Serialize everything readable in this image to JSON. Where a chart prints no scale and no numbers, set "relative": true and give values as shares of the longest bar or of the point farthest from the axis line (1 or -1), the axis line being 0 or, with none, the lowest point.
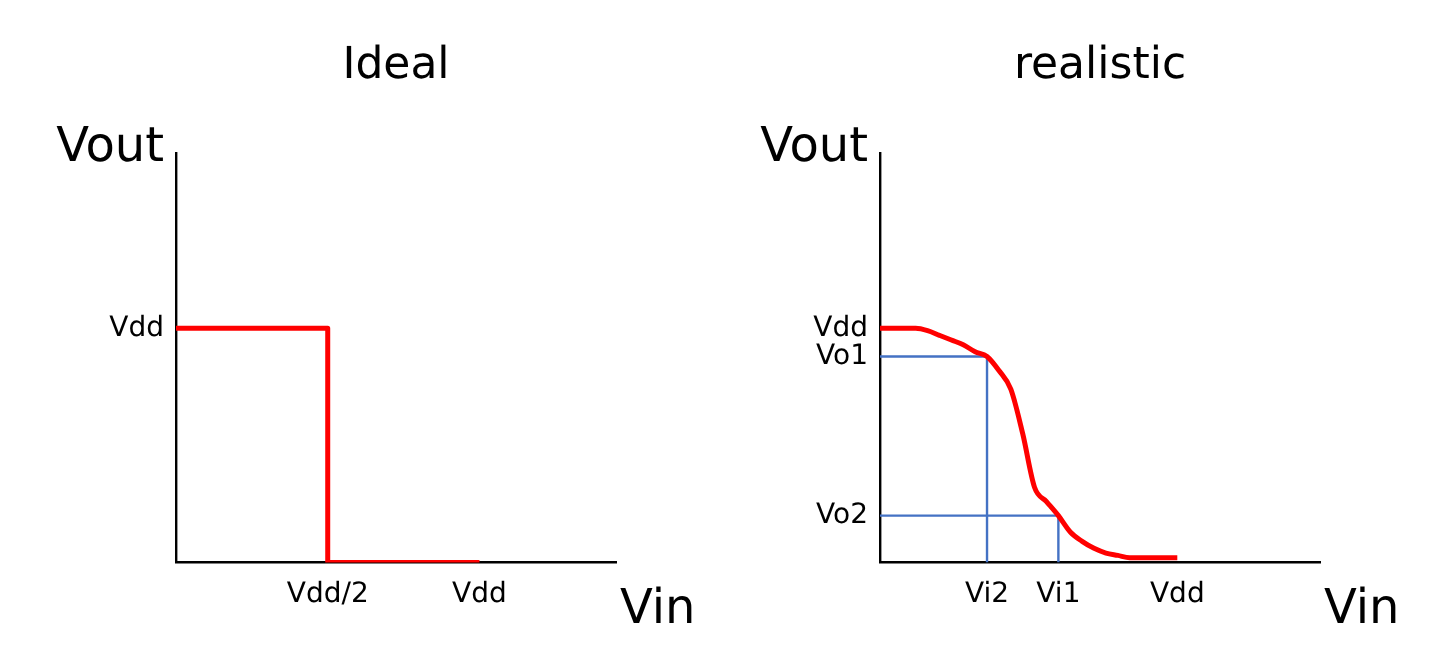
{
  "chart_data": [
    {
      "type": "line",
      "title": "Ideal",
      "xlabel": "Vin",
      "ylabel": "Vout",
      "relative": true,
      "categories": [
        null,
        null,
        null,
        null,
        null,
        null,
        null,
        null,
        null,
        null,
        "Vdd/2",
        null,
        null,
        null,
        null,
        null,
        null,
        null,
        null,
        null,
        "Vdd",
        null,
        null,
        null,
        null,
        null,
        null,
        null,
        null,
        null
      ],
      "annotations": [
        "Vdd"
      ],
      "series": [
        {
          "type": "step",
          "color": "#ff0000",
          "values": [
            1,
            1,
            1,
            1,
            1,
            1,
            1,
            1,
            1,
            1,
            0,
            0,
            0,
            0,
            0,
            0,
            0,
            0,
            0,
            0,
            0,
            null,
            null,
            null,
            null,
            null,
            null,
            null,
            null,
            null
          ]
        }
      ]
    },
    {
      "type": "line",
      "title": "realistic",
      "xlabel": "Vin",
      "ylabel": "Vout",
      "relative": true,
      "categories": [
        null,
        null,
        null,
        null,
        null,
        null,
        null,
        null,
        null,
        "Vi2",
        null,
        null,
        null,
        null,
        null,
        "Vi1",
        null,
        null,
        null,
        null,
        null,
        null,
        null,
        null,
        null,
        "Vdd",
        null,
        null,
        null,
        null,
        null,
        null,
        null,
        null,
        null,
        null,
        null,
        null
      ],
      "annotations": [
        "Vdd",
        "Vo1",
        "Vo2"
      ],
      "series": [
        {
          "color": "#ff0000",
          "values": [
            1,
            1,
            1,
            1,
            0.99,
            0.97,
            0.95,
            0.93,
            0.9,
            0.88,
            0.82,
            0.74,
            0.55,
            0.32,
            0.26,
            0.2,
            0.13,
            0.09,
            0.06,
            0.04,
            0.03,
            0.02,
            0.02,
            0.02,
            0.02,
            0.02,
            null,
            null,
            null,
            null,
            null,
            null,
            null,
            null,
            null,
            null,
            null,
            null
          ]
        },
        {
          "type": "step",
          "color": "#4472c4",
          "values": [
            0.88,
            0.88,
            0.88,
            0.88,
            0.88,
            0.88,
            0.88,
            0.88,
            0.88,
            0,
            null,
            null,
            null,
            null,
            null,
            null,
            null,
            null,
            null,
            null,
            null,
            null,
            null,
            null,
            null,
            null,
            null,
            null,
            null,
            null,
            null,
            null,
            null,
            null,
            null,
            null,
            null,
            null
          ]
        },
        {
          "type": "step",
          "color": "#4472c4",
          "values": [
            0.2,
            0.2,
            0.2,
            0.2,
            0.2,
            0.2,
            0.2,
            0.2,
            0.2,
            0.2,
            0.2,
            0.2,
            0.2,
            0.2,
            0.2,
            0,
            null,
            null,
            null,
            null,
            null,
            null,
            null,
            null,
            null,
            null,
            null,
            null,
            null,
            null,
            null,
            null,
            null,
            null,
            null,
            null,
            null,
            null
          ]
        }
      ]
    }
  ]
}
